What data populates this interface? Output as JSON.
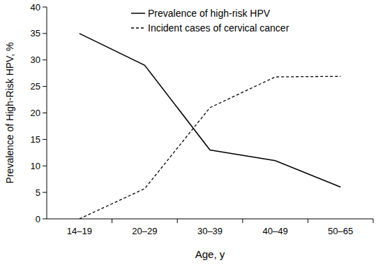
{
  "chart_data": {
    "type": "line",
    "x_label": "Age, y",
    "y_label": "Prevalence of High-Risk HPV, %",
    "categories": [
      "14–19",
      "20–29",
      "30–39",
      "40–49",
      "50–65"
    ],
    "series": [
      {
        "name": "Prevalence of high-risk HPV",
        "color": "#000000",
        "line_style": "solid",
        "values": [
          35,
          29,
          13,
          11,
          6
        ]
      },
      {
        "name": "Incident cases of cervical cancer",
        "color": "#000000",
        "line_style": "dashed",
        "values": [
          0,
          5.7,
          21,
          26.8,
          26.9
        ]
      }
    ],
    "ylim": [
      0,
      40
    ],
    "yticks": [
      0,
      5,
      10,
      15,
      20,
      25,
      30,
      35,
      40
    ],
    "grid": false,
    "legend": "top"
  }
}
